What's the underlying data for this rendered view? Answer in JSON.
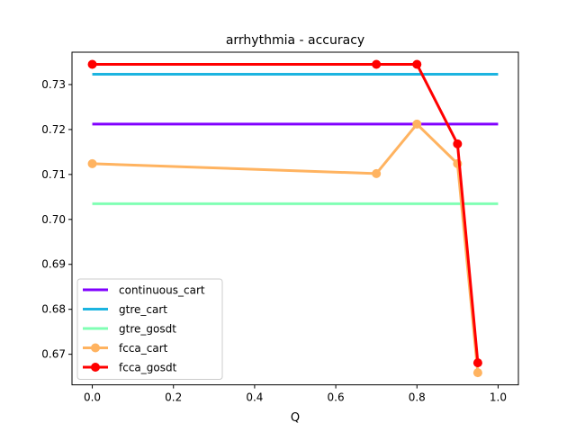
{
  "chart_data": {
    "type": "line",
    "title": "arrhythmia - accuracy",
    "xlabel": "Q",
    "ylabel": "",
    "xlim": [
      -0.05,
      1.05
    ],
    "ylim": [
      0.6632,
      0.7372
    ],
    "x_ticks": [
      "0.0",
      "0.2",
      "0.4",
      "0.6",
      "0.8",
      "1.0"
    ],
    "y_ticks": [
      "0.67",
      "0.68",
      "0.69",
      "0.70",
      "0.71",
      "0.72",
      "0.73"
    ],
    "grid": false,
    "legend_position": "lower-left",
    "series": [
      {
        "name": "continuous_cart",
        "color": "#8000ff",
        "x": [
          0.0,
          1.0
        ],
        "y": [
          0.7212,
          0.7212
        ],
        "markers": false
      },
      {
        "name": "gtre_cart",
        "color": "#1cb4e0",
        "x": [
          0.0,
          1.0
        ],
        "y": [
          0.7323,
          0.7323
        ],
        "markers": false
      },
      {
        "name": "gtre_gosdt",
        "color": "#80ffb4",
        "x": [
          0.0,
          1.0
        ],
        "y": [
          0.7035,
          0.7035
        ],
        "markers": false
      },
      {
        "name": "fcca_cart",
        "color": "#ffb360",
        "x": [
          0.0,
          0.7,
          0.8,
          0.9,
          0.95
        ],
        "y": [
          0.7124,
          0.7102,
          0.7212,
          0.7124,
          0.6659
        ],
        "markers": true
      },
      {
        "name": "fcca_gosdt",
        "color": "#ff0000",
        "x": [
          0.0,
          0.7,
          0.8,
          0.9,
          0.95
        ],
        "y": [
          0.7345,
          0.7345,
          0.7345,
          0.7168,
          0.6681
        ],
        "markers": true
      }
    ]
  }
}
